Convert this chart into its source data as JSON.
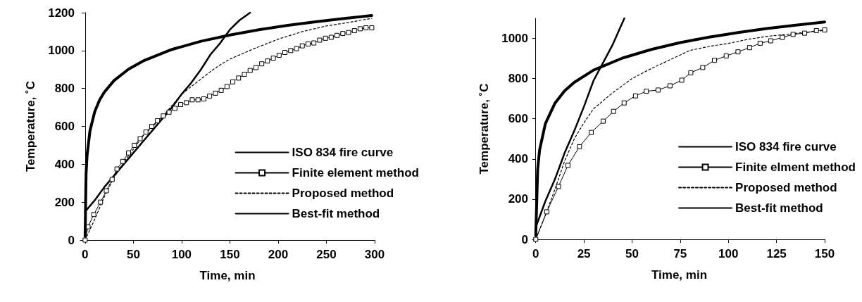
{
  "chart_data": [
    {
      "type": "line",
      "xlabel": "Time, min",
      "ylabel": "Temperature, ˚C",
      "xlim": [
        -5,
        300
      ],
      "ylim": [
        0,
        1200
      ],
      "xticks": [
        0,
        50,
        100,
        150,
        200,
        250,
        300
      ],
      "yticks": [
        0,
        200,
        400,
        600,
        800,
        1000,
        1200
      ],
      "grid": false,
      "legend": "bottom right",
      "series": [
        {
          "name": "ISO 834 fire curve",
          "color": "#000000",
          "marker": "none",
          "line_style": "solid",
          "x": [
            0,
            1,
            2,
            5,
            10,
            15,
            20,
            30,
            45,
            60,
            90,
            120,
            150,
            180,
            210,
            240,
            270,
            297
          ],
          "values": [
            20,
            349,
            445,
            576,
            678,
            739,
            781,
            842,
            902,
            945,
            1006,
            1049,
            1082,
            1110,
            1133,
            1153,
            1170,
            1185
          ]
        },
        {
          "name": "Finite element method",
          "color": "#000000",
          "marker": "square",
          "line_style": "solid",
          "x": [
            0,
            3,
            9,
            16,
            22,
            28,
            33,
            39,
            45,
            51,
            57,
            63,
            69,
            75,
            81,
            87,
            93,
            99,
            105,
            111,
            117,
            123,
            129,
            135,
            141,
            147,
            153,
            159,
            165,
            171,
            177,
            183,
            189,
            195,
            201,
            207,
            213,
            219,
            225,
            231,
            237,
            243,
            249,
            255,
            261,
            267,
            273,
            279,
            285,
            291,
            297
          ],
          "values": [
            0,
            70,
            135,
            200,
            260,
            320,
            375,
            415,
            460,
            500,
            535,
            570,
            600,
            630,
            655,
            675,
            695,
            715,
            725,
            740,
            740,
            745,
            760,
            775,
            790,
            810,
            835,
            855,
            875,
            895,
            910,
            930,
            945,
            960,
            975,
            990,
            1000,
            1010,
            1025,
            1035,
            1040,
            1055,
            1065,
            1070,
            1080,
            1090,
            1095,
            1105,
            1115,
            1120,
            1120
          ]
        },
        {
          "name": "Proposed method",
          "color": "#000000",
          "marker": "none",
          "line_style": "dashed",
          "x": [
            0,
            10,
            20,
            30,
            40,
            50,
            60,
            70,
            80,
            90,
            100,
            110,
            120,
            130,
            140,
            150,
            175,
            200,
            225,
            250,
            275,
            297
          ],
          "values": [
            0,
            110,
            230,
            330,
            410,
            480,
            550,
            600,
            650,
            710,
            770,
            810,
            850,
            890,
            925,
            955,
            1010,
            1060,
            1100,
            1130,
            1150,
            1170
          ]
        },
        {
          "name": "Best-fit method",
          "color": "#000000",
          "marker": "none",
          "line_style": "solid",
          "x": [
            0,
            10,
            20,
            30,
            40,
            50,
            60,
            70,
            80,
            90,
            100,
            110,
            120,
            130,
            140,
            150,
            160,
            171
          ],
          "values": [
            150,
            210,
            280,
            340,
            400,
            460,
            520,
            580,
            640,
            700,
            770,
            830,
            900,
            980,
            1040,
            1110,
            1160,
            1200
          ]
        }
      ]
    },
    {
      "type": "line",
      "xlabel": "Time, min",
      "ylabel": "Temperature, ˚C",
      "xlim": [
        -1,
        150
      ],
      "ylim": [
        0,
        1100
      ],
      "xticks": [
        0,
        25,
        50,
        75,
        100,
        125,
        150
      ],
      "yticks": [
        0,
        200,
        400,
        600,
        800,
        1000
      ],
      "grid": false,
      "legend": "bottom right",
      "series": [
        {
          "name": "ISO 834 fire curve",
          "color": "#000000",
          "marker": "none",
          "line_style": "solid",
          "x": [
            0,
            1,
            2,
            5,
            10,
            15,
            20,
            30,
            45,
            60,
            75,
            90,
            105,
            120,
            135,
            150
          ],
          "values": [
            20,
            349,
            445,
            576,
            678,
            739,
            781,
            842,
            902,
            945,
            979,
            1006,
            1029,
            1049,
            1066,
            1082
          ]
        },
        {
          "name": "Finite elment method",
          "color": "#000000",
          "marker": "square",
          "line_style": "solid",
          "x": [
            0,
            5.7,
            11.8,
            16.7,
            22.7,
            28.8,
            35,
            40.4,
            45.9,
            51.8,
            57.4,
            63.5,
            69.7,
            75.8,
            80.5,
            86.7,
            92.8,
            98.9,
            105,
            111,
            116.5,
            122,
            128,
            133.6,
            139.6,
            145.7,
            150
          ],
          "values": [
            0,
            137,
            263,
            368,
            461,
            532,
            588,
            637,
            679,
            714,
            737,
            743,
            764,
            792,
            829,
            855,
            891,
            913,
            933,
            954,
            976,
            988,
            1005,
            1020,
            1026,
            1039,
            1042
          ]
        },
        {
          "name": "Proposed method",
          "color": "#000000",
          "marker": "none",
          "line_style": "dashed",
          "x": [
            0,
            5,
            10,
            15,
            20,
            25,
            30,
            40,
            50,
            60,
            70,
            80,
            90,
            100,
            110,
            120,
            130,
            140,
            150
          ],
          "values": [
            0,
            120,
            250,
            390,
            500,
            580,
            650,
            730,
            800,
            850,
            895,
            940,
            960,
            975,
            995,
            1010,
            1020,
            1030,
            1040
          ]
        },
        {
          "name": "Best-fit method",
          "color": "#000000",
          "marker": "none",
          "line_style": "solid",
          "x": [
            0,
            5,
            10,
            15,
            20,
            25,
            30,
            35,
            40,
            46
          ],
          "values": [
            60,
            190,
            300,
            430,
            540,
            660,
            790,
            880,
            970,
            1100
          ]
        }
      ]
    }
  ]
}
